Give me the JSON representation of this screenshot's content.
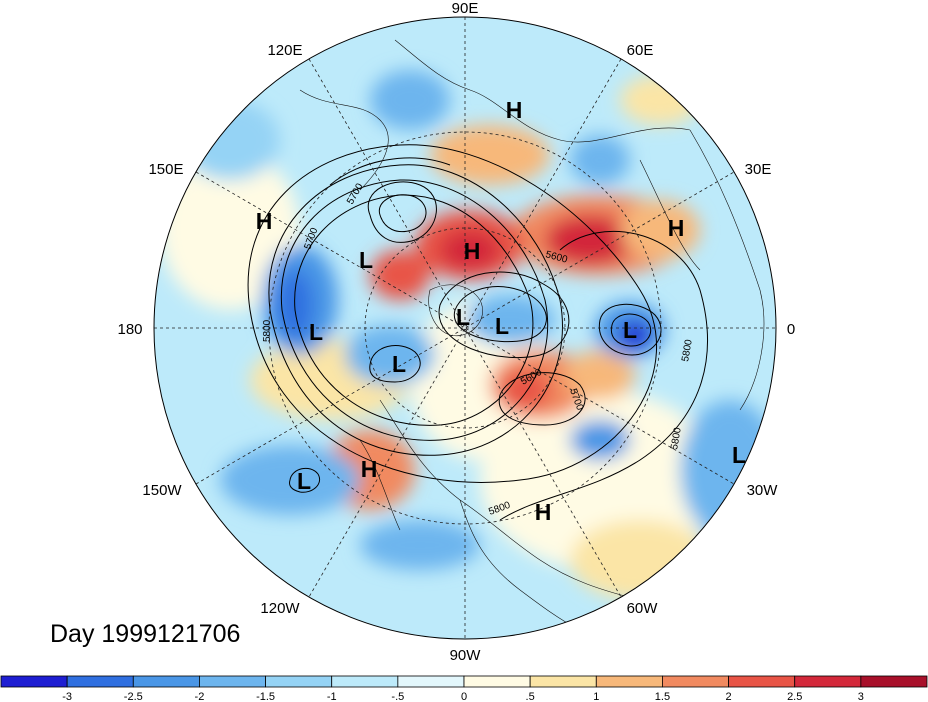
{
  "title": "Day 1999121706",
  "longitude_labels": {
    "top": "90E",
    "upper_left": "120E",
    "upper_right": "60E",
    "left_upper": "150E",
    "right_upper": "30E",
    "left": "180",
    "right": "0",
    "left_lower": "150W",
    "right_lower": "30W",
    "lower_left": "120W",
    "lower_right": "60W",
    "bottom": "90W"
  },
  "pressure_centers": [
    {
      "type": "H",
      "label": "H"
    },
    {
      "type": "H",
      "label": "H"
    },
    {
      "type": "H",
      "label": "H"
    },
    {
      "type": "H",
      "label": "H"
    },
    {
      "type": "H",
      "label": "H"
    },
    {
      "type": "H",
      "label": "H"
    },
    {
      "type": "L",
      "label": "L"
    },
    {
      "type": "L",
      "label": "L"
    },
    {
      "type": "L",
      "label": "L"
    },
    {
      "type": "L",
      "label": "L"
    },
    {
      "type": "L",
      "label": "L"
    },
    {
      "type": "L",
      "label": "L"
    },
    {
      "type": "L",
      "label": "L"
    },
    {
      "type": "L",
      "label": "L"
    }
  ],
  "contour_labels": [
    "5700",
    "5700",
    "5800",
    "5600",
    "5800",
    "5600",
    "5700",
    "5800",
    "5800"
  ],
  "colorbar": {
    "colors": [
      "#1e1ed2",
      "#2f6fe0",
      "#4a96e6",
      "#6db5ee",
      "#95d3f5",
      "#bdeafa",
      "#e3f7fc",
      "#fffbe4",
      "#fbe5a6",
      "#f7b87a",
      "#f18a60",
      "#e85446",
      "#d3283a",
      "#a8102a"
    ],
    "tick_labels": [
      "-3",
      "-2.5",
      "-2",
      "-1.5",
      "-1",
      "-.5",
      "0",
      ".5",
      "1",
      "1.5",
      "2",
      "2.5",
      "3"
    ]
  }
}
